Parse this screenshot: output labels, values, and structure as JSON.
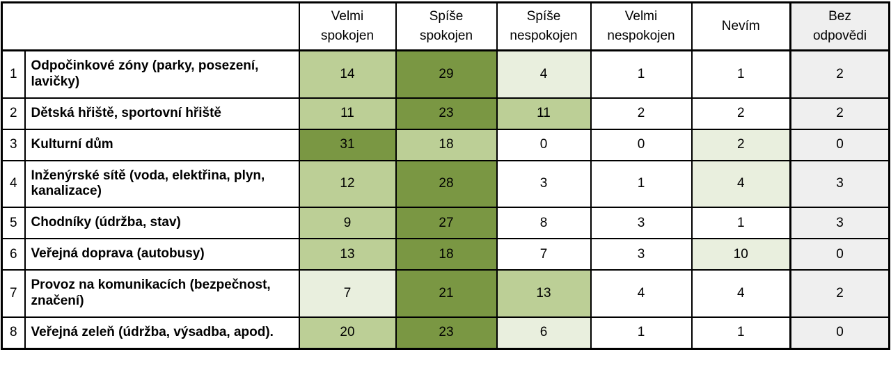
{
  "colors": {
    "dark_green": "#7A9743",
    "medium_green": "#BCCF96",
    "light_green": "#E9EFDE",
    "gray": "#EFEFEF",
    "border": "#000000",
    "text": "#000000"
  },
  "table": {
    "headers": [
      "Velmi spokojen",
      "Spíše spokojen",
      "Spíše nespokojen",
      "Velmi nespokojen",
      "Nevím",
      "Bez odpovědi"
    ],
    "rows": [
      {
        "num": "1",
        "label": "Odpočinkové zóny (parky, posezení, lavičky)",
        "values": [
          "14",
          "29",
          "4",
          "1",
          "1",
          "2"
        ],
        "shades": [
          "medium",
          "dark",
          "light",
          "white",
          "white",
          "gray"
        ]
      },
      {
        "num": "2",
        "label": "Dětská hřiště, sportovní hřiště",
        "values": [
          "11",
          "23",
          "11",
          "2",
          "2",
          "2"
        ],
        "shades": [
          "medium",
          "dark",
          "medium",
          "white",
          "white",
          "gray"
        ]
      },
      {
        "num": "3",
        "label": "Kulturní dům",
        "values": [
          "31",
          "18",
          "0",
          "0",
          "2",
          "0"
        ],
        "shades": [
          "dark",
          "medium",
          "white",
          "white",
          "light",
          "gray"
        ]
      },
      {
        "num": "4",
        "label": "Inženýrské sítě (voda, elektřina, plyn, kanalizace)",
        "values": [
          "12",
          "28",
          "3",
          "1",
          "4",
          "3"
        ],
        "shades": [
          "medium",
          "dark",
          "white",
          "white",
          "light",
          "gray"
        ]
      },
      {
        "num": "5",
        "label": "Chodníky (údržba, stav)",
        "values": [
          "9",
          "27",
          "8",
          "3",
          "1",
          "3"
        ],
        "shades": [
          "medium",
          "dark",
          "white",
          "white",
          "white",
          "gray"
        ]
      },
      {
        "num": "6",
        "label": "Veřejná doprava (autobusy)",
        "values": [
          "13",
          "18",
          "7",
          "3",
          "10",
          "0"
        ],
        "shades": [
          "medium",
          "dark",
          "white",
          "white",
          "light",
          "gray"
        ]
      },
      {
        "num": "7",
        "label": "Provoz na komunikacích (bezpečnost, značení)",
        "values": [
          "7",
          "21",
          "13",
          "4",
          "4",
          "2"
        ],
        "shades": [
          "light",
          "dark",
          "medium",
          "white",
          "white",
          "gray"
        ]
      },
      {
        "num": "8",
        "label": "Veřejná zeleň (údržba, výsadba, apod).",
        "values": [
          "20",
          "23",
          "6",
          "1",
          "1",
          "0"
        ],
        "shades": [
          "medium",
          "dark",
          "light",
          "white",
          "white",
          "gray"
        ]
      }
    ]
  },
  "chart_data": {
    "type": "table",
    "title": "",
    "columns": [
      "Velmi spokojen",
      "Spíše spokojen",
      "Spíše nespokojen",
      "Velmi nespokojen",
      "Nevím",
      "Bez odpovědi"
    ],
    "row_labels": [
      "Odpočinkové zóny (parky, posezení, lavičky)",
      "Dětská hřiště, sportovní hřiště",
      "Kulturní dům",
      "Inženýrské sítě (voda, elektřina, plyn, kanalizace)",
      "Chodníky (údržba, stav)",
      "Veřejná doprava (autobusy)",
      "Provoz na komunikacích (bezpečnost, značení)",
      "Veřejná zeleň (údržba, výsadba, apod)."
    ],
    "values": [
      [
        14,
        29,
        4,
        1,
        1,
        2
      ],
      [
        11,
        23,
        11,
        2,
        2,
        2
      ],
      [
        31,
        18,
        0,
        0,
        2,
        0
      ],
      [
        12,
        28,
        3,
        1,
        4,
        3
      ],
      [
        9,
        27,
        8,
        3,
        1,
        3
      ],
      [
        13,
        18,
        7,
        3,
        10,
        0
      ],
      [
        7,
        21,
        13,
        4,
        4,
        2
      ],
      [
        20,
        23,
        6,
        1,
        1,
        0
      ]
    ],
    "cell_shading": [
      [
        "medium",
        "dark",
        "light",
        "white",
        "white",
        "gray"
      ],
      [
        "medium",
        "dark",
        "medium",
        "white",
        "white",
        "gray"
      ],
      [
        "dark",
        "medium",
        "white",
        "white",
        "light",
        "gray"
      ],
      [
        "medium",
        "dark",
        "white",
        "white",
        "light",
        "gray"
      ],
      [
        "medium",
        "dark",
        "white",
        "white",
        "white",
        "gray"
      ],
      [
        "medium",
        "dark",
        "white",
        "white",
        "light",
        "gray"
      ],
      [
        "light",
        "dark",
        "medium",
        "white",
        "white",
        "gray"
      ],
      [
        "medium",
        "dark",
        "light",
        "white",
        "white",
        "gray"
      ]
    ]
  }
}
